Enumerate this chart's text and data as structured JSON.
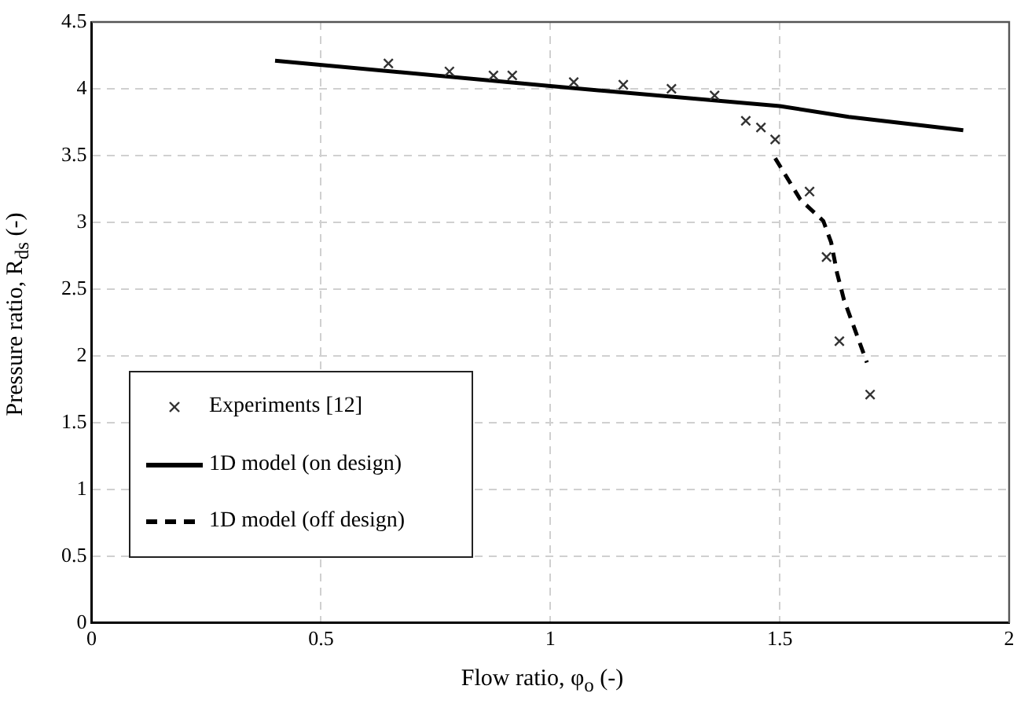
{
  "chart_data": {
    "type": "scatter",
    "xlabel": "Flow ratio, φ$_{o}$ (-)",
    "ylabel": "Pressure ratio, R$_{ds}$ (-)",
    "xlim": [
      0,
      2
    ],
    "xticks": [
      0,
      0.5,
      1,
      1.5,
      2
    ],
    "ylim": [
      0,
      4.5
    ],
    "yticks": [
      0,
      0.5,
      1,
      1.5,
      2,
      2.5,
      3,
      3.5,
      4,
      4.5
    ],
    "grid": true,
    "legend": "bottom left",
    "series": [
      {
        "name": "Experiments [12]",
        "type": "scatter",
        "color": "#333333",
        "marker": "cross",
        "x": [
          0.647,
          0.78,
          0.876,
          0.917,
          1.051,
          1.159,
          1.264,
          1.358,
          1.426,
          1.459,
          1.49,
          1.565,
          1.602,
          1.63,
          1.697
        ],
        "values": [
          4.19,
          4.13,
          4.1,
          4.1,
          4.05,
          4.03,
          4.0,
          3.95,
          3.76,
          3.71,
          3.62,
          3.23,
          2.74,
          2.11,
          1.71
        ]
      },
      {
        "name": "1D model (on design)",
        "type": "line",
        "color": "#000000",
        "line_style": "solid",
        "marker": "none",
        "x": [
          0.4,
          1.0,
          1.5,
          1.65,
          1.9
        ],
        "values": [
          4.21,
          4.02,
          3.87,
          3.79,
          3.69
        ]
      },
      {
        "name": "1D model (off design)",
        "type": "line",
        "color": "#000000",
        "line_style": "dashed",
        "marker": "none",
        "x": [
          1.49,
          1.545,
          1.595,
          1.612,
          1.625,
          1.64,
          1.69
        ],
        "values": [
          3.48,
          3.17,
          3.01,
          2.85,
          2.62,
          2.42,
          1.95
        ]
      }
    ]
  }
}
